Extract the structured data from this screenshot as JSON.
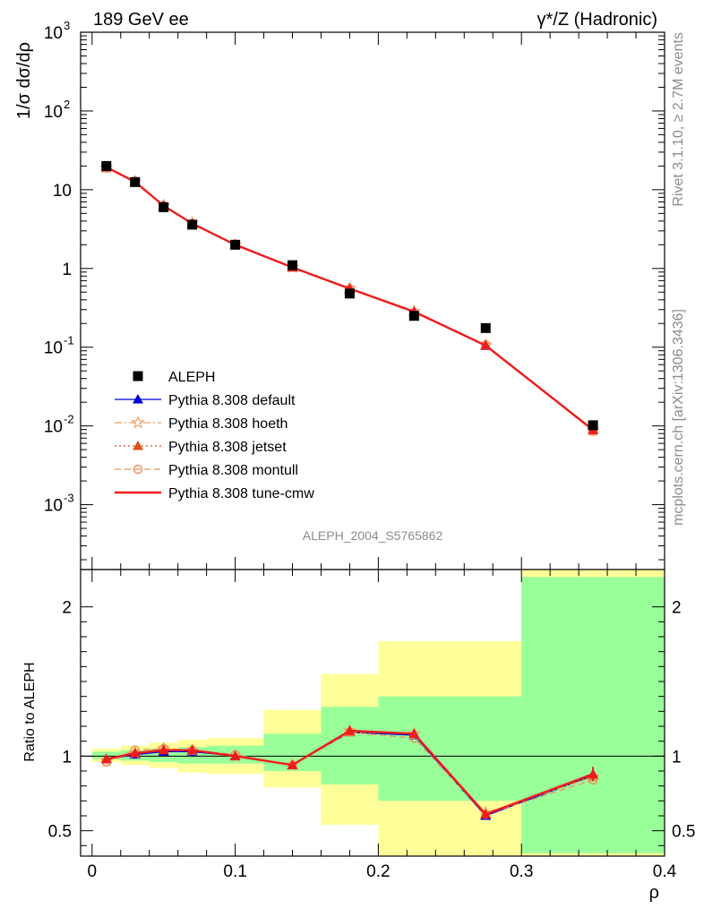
{
  "header": {
    "left": "189 GeV ee",
    "right": "γ*/Z (Hadronic)"
  },
  "side_text": {
    "rivet": "Rivet 3.1.10, ≥ 2.7M events",
    "mcplots": "mcplots.cern.ch [arXiv:1306.3436]"
  },
  "analysis_label": "ALEPH_2004_S5765862",
  "chart_data": [
    {
      "type": "line",
      "panel": "main",
      "ylabel": "1/σ dσ/dρ",
      "xlabel": "",
      "yscale": "log",
      "ylim": [
        0.00015,
        1000
      ],
      "xlim": [
        -0.008,
        0.4
      ],
      "ytick_labels": [
        "10^-3",
        "10^-2",
        "10^-1",
        "1",
        "10",
        "10^2",
        "10^3"
      ],
      "x": [
        0.01,
        0.03,
        0.05,
        0.07,
        0.1,
        0.14,
        0.18,
        0.225,
        0.275,
        0.35
      ],
      "data": {
        "name": "ALEPH",
        "values": [
          20.0,
          12.5,
          6.0,
          3.6,
          2.0,
          1.1,
          0.48,
          0.25,
          0.175,
          0.0102
        ]
      },
      "series": [
        {
          "name": "Pythia 8.308 default",
          "color": "#0000dd",
          "style": "solid",
          "marker": "triangle",
          "values": [
            19.2,
            12.6,
            6.2,
            3.7,
            2.0,
            1.03,
            0.55,
            0.28,
            0.104,
            0.0088
          ]
        },
        {
          "name": "Pythia 8.308 hoeth",
          "color": "#f0a060",
          "style": "dashdot",
          "marker": "star",
          "values": [
            19.0,
            12.7,
            6.3,
            3.75,
            2.0,
            1.04,
            0.56,
            0.285,
            0.107,
            0.0087
          ]
        },
        {
          "name": "Pythia 8.308 jetset",
          "color": "#e05018",
          "style": "dotted",
          "marker": "triangle",
          "values": [
            19.1,
            12.7,
            6.25,
            3.72,
            2.0,
            1.03,
            0.555,
            0.283,
            0.106,
            0.0088
          ]
        },
        {
          "name": "Pythia 8.308 montull",
          "color": "#e89060",
          "style": "dashed",
          "marker": "circle",
          "values": [
            18.8,
            12.9,
            6.3,
            3.7,
            2.02,
            1.04,
            0.55,
            0.275,
            0.107,
            0.0086
          ]
        },
        {
          "name": "Pythia 8.308 tune-cmw",
          "color": "#ee1c1c",
          "style": "solid",
          "marker": "triangle",
          "values": [
            19.3,
            12.6,
            6.25,
            3.72,
            2.0,
            1.03,
            0.555,
            0.283,
            0.105,
            0.0089
          ]
        }
      ]
    },
    {
      "type": "line",
      "panel": "ratio",
      "ylabel": "Ratio to ALEPH",
      "xlabel": "ρ",
      "ylim": [
        0.33,
        2.25
      ],
      "xlim": [
        -0.008,
        0.4
      ],
      "xtick_labels": [
        "0",
        "0.1",
        "0.2",
        "0.3",
        "0.4"
      ],
      "ytick_labels": [
        "0.5",
        "1",
        "2"
      ],
      "bins": [
        [
          0.0,
          0.02
        ],
        [
          0.02,
          0.04
        ],
        [
          0.04,
          0.06
        ],
        [
          0.06,
          0.08
        ],
        [
          0.08,
          0.12
        ],
        [
          0.12,
          0.16
        ],
        [
          0.16,
          0.2
        ],
        [
          0.2,
          0.25
        ],
        [
          0.25,
          0.3
        ],
        [
          0.3,
          0.4
        ]
      ],
      "band_inner": [
        [
          0.98,
          1.03
        ],
        [
          0.97,
          1.04
        ],
        [
          0.96,
          1.05
        ],
        [
          0.95,
          1.06
        ],
        [
          0.95,
          1.07
        ],
        [
          0.9,
          1.15
        ],
        [
          0.81,
          1.33
        ],
        [
          0.7,
          1.4
        ],
        [
          0.7,
          1.4
        ],
        [
          0.35,
          2.2
        ]
      ],
      "band_outer": [
        [
          0.96,
          1.05
        ],
        [
          0.94,
          1.07
        ],
        [
          0.92,
          1.09
        ],
        [
          0.89,
          1.11
        ],
        [
          0.88,
          1.12
        ],
        [
          0.79,
          1.31
        ],
        [
          0.54,
          1.55
        ],
        [
          0.33,
          1.77
        ],
        [
          0.33,
          1.77
        ],
        [
          0.33,
          2.4
        ]
      ],
      "x": [
        0.01,
        0.03,
        0.05,
        0.07,
        0.1,
        0.14,
        0.18,
        0.225,
        0.275,
        0.35
      ],
      "series": [
        {
          "name": "Pythia 8.308 default",
          "color": "#0000dd",
          "style": "solid",
          "marker": "triangle",
          "values": [
            0.98,
            1.01,
            1.03,
            1.03,
            1.0,
            0.94,
            1.16,
            1.14,
            0.6,
            0.87
          ]
        },
        {
          "name": "Pythia 8.308 hoeth",
          "color": "#f0a060",
          "style": "dashdot",
          "marker": "star",
          "values": [
            0.97,
            1.02,
            1.05,
            1.04,
            1.0,
            0.94,
            1.17,
            1.15,
            0.62,
            0.86
          ]
        },
        {
          "name": "Pythia 8.308 jetset",
          "color": "#e05018",
          "style": "dotted",
          "marker": "triangle",
          "values": [
            0.98,
            1.02,
            1.04,
            1.04,
            1.0,
            0.94,
            1.16,
            1.15,
            0.61,
            0.87
          ]
        },
        {
          "name": "Pythia 8.308 montull",
          "color": "#e89060",
          "style": "dashed",
          "marker": "circle",
          "values": [
            0.96,
            1.04,
            1.05,
            1.04,
            1.01,
            0.94,
            1.16,
            1.12,
            0.61,
            0.84
          ]
        },
        {
          "name": "Pythia 8.308 tune-cmw",
          "color": "#ee1c1c",
          "style": "solid",
          "marker": "triangle",
          "values": [
            0.98,
            1.02,
            1.04,
            1.04,
            1.0,
            0.94,
            1.17,
            1.15,
            0.61,
            0.88
          ]
        }
      ]
    }
  ],
  "colors": {
    "band_inner": "#99ff99",
    "band_outer": "#ffff99",
    "data_marker": "#000000"
  }
}
